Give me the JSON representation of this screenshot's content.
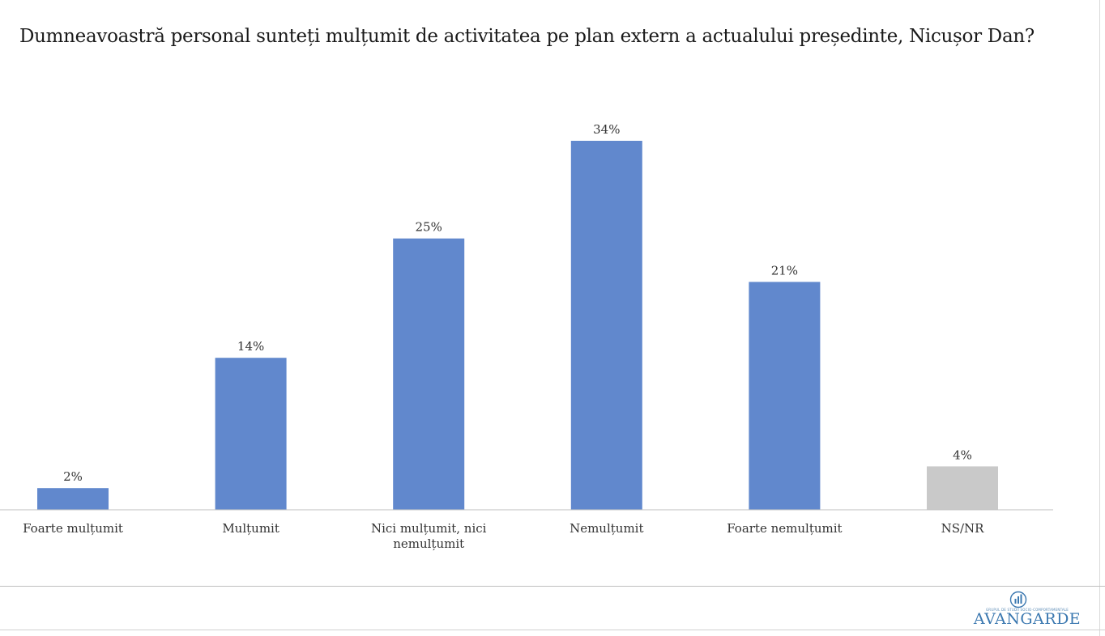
{
  "title": "Dumneavoastră personal sunteți mulțumit de activitatea pe plan extern a actualului președinte, Nicușor Dan?",
  "colors": {
    "primary_bar": "#6188cd",
    "other_bar": "#c9c9c9",
    "baseline": "#bfbfbf"
  },
  "chart_data": {
    "type": "bar",
    "title": "Dumneavoastră personal sunteți mulțumit de activitatea pe plan extern a actualului președinte, Nicușor Dan?",
    "categories": [
      [
        "Foarte mulțumit"
      ],
      [
        "Mulțumit"
      ],
      [
        "Nici mulțumit, nici",
        "nemulțumit"
      ],
      [
        "Nemulțumit"
      ],
      [
        "Foarte nemulțumit"
      ],
      [
        "NS/NR"
      ]
    ],
    "values": [
      2,
      14,
      25,
      34,
      21,
      4
    ],
    "data_labels": [
      "2%",
      "14%",
      "25%",
      "34%",
      "21%",
      "4%"
    ],
    "bar_colors": [
      "#6188cd",
      "#6188cd",
      "#6188cd",
      "#6188cd",
      "#6188cd",
      "#c9c9c9"
    ],
    "unit": "%",
    "ylim": [
      0,
      34
    ],
    "grid": false,
    "legend": "none"
  },
  "logo": {
    "icon": "avangarde-logo-icon",
    "tagline": "GRUPUL DE STUDII SOCIO-COMPORTAMENTALE",
    "text": "AVANGARDE"
  }
}
